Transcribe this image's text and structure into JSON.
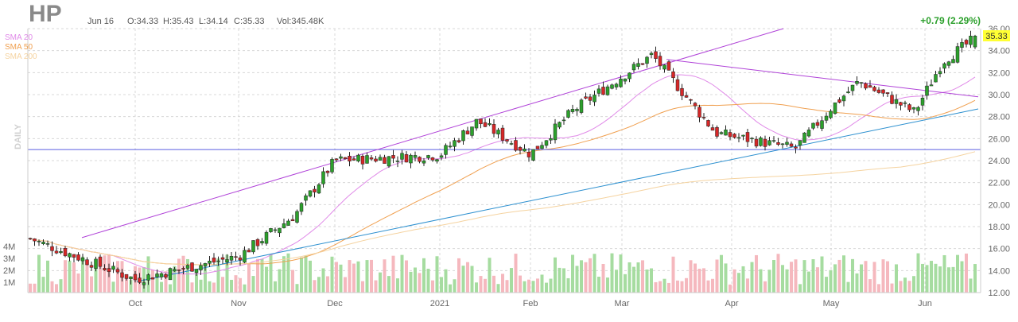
{
  "header": {
    "ticker": "HP",
    "date": "Jun 16",
    "open": "O:34.33",
    "high": "H:35.43",
    "low": "L:34.14",
    "close": "C:35.33",
    "volume": "Vol:345.48K",
    "change": "+0.79 (2.29%)"
  },
  "legend": [
    {
      "label": "SMA 20",
      "color": "#e08ae8"
    },
    {
      "label": "SMA 50",
      "color": "#f0a050"
    },
    {
      "label": "SMA 200",
      "color": "#f5d3a0"
    }
  ],
  "side_label": "DAILY",
  "last_price_tag": "35.33",
  "colors": {
    "up": "#2ca02c",
    "down": "#d62728",
    "vol_up": "#a6dca0",
    "vol_down": "#f5b8be",
    "channel": "#b042d8",
    "trend": "#2b8fcf",
    "horizontal": "#5a5ee0",
    "grid": "#d8d8d8",
    "change_positive": "#2ca02c",
    "price_tag_bg": "#ffff33"
  },
  "chart_data": {
    "type": "candlestick",
    "title": "HP",
    "period": "DAILY",
    "ylim": [
      12,
      36
    ],
    "y_ticks": [
      "36.00",
      "34.00",
      "32.00",
      "30.00",
      "28.00",
      "26.00",
      "24.00",
      "22.00",
      "20.00",
      "18.00",
      "16.00",
      "14.00",
      "12.00"
    ],
    "x_ticks": [
      "Oct",
      "Nov",
      "Dec",
      "2021",
      "Feb",
      "Mar",
      "Apr",
      "May",
      "Jun"
    ],
    "volume_ticks": [
      "4M",
      "3M",
      "2M",
      "1M"
    ],
    "ohlc_anchor_closes": {
      "start": 16.9,
      "oct_low": 13.2,
      "nov": 15.3,
      "late_nov": 19.0,
      "dec": 24.0,
      "jan_2021": 24.5,
      "jan_high": 27.6,
      "feb": 24.6,
      "feb_mid": 28.5,
      "mar_high": 33.6,
      "apr": 26.5,
      "late_apr": 25.1,
      "may": 28.8,
      "may_high": 31.2,
      "late_may": 28.4,
      "jun": 33.0,
      "last": 35.33
    },
    "indicators": [
      "SMA 20",
      "SMA 50",
      "SMA 200"
    ],
    "horizontal_line": 25.0,
    "last": {
      "date": "Jun 16",
      "open": 34.33,
      "high": 35.43,
      "low": 34.14,
      "close": 35.33,
      "volume": "345.48K",
      "change": 0.79,
      "change_pct": 2.29
    }
  }
}
